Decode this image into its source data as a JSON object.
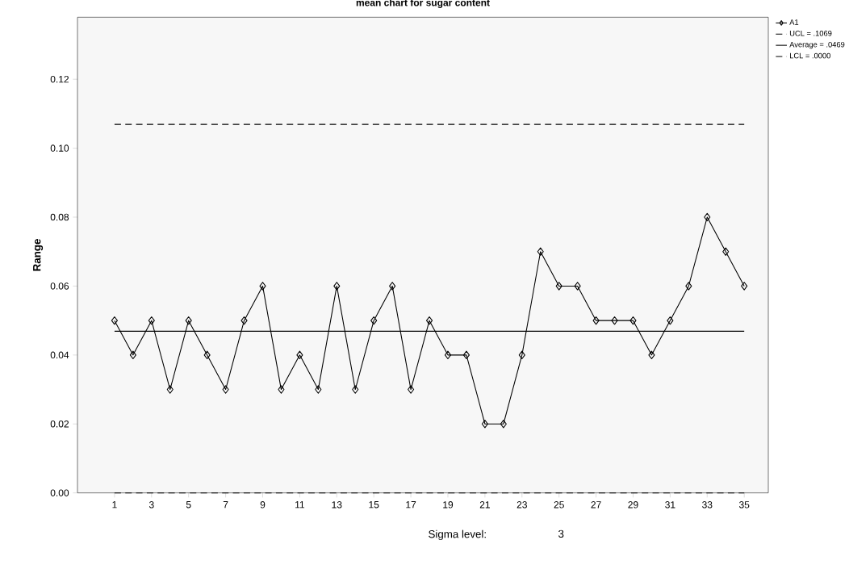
{
  "chart_data": {
    "type": "line",
    "title": "mean chart for sugar content",
    "xlabel": "Sigma level:",
    "ylabel": "Range",
    "categories": [
      "1",
      null,
      "3",
      null,
      "5",
      null,
      "7",
      null,
      "9",
      null,
      "11",
      null,
      "13",
      null,
      "15",
      null,
      "17",
      null,
      "19",
      null,
      "21",
      null,
      "23",
      null,
      "25",
      null,
      "27",
      null,
      "29",
      null,
      "31",
      null,
      "33",
      null,
      "35"
    ],
    "series": [
      {
        "name": "A1",
        "color": "#000000",
        "values": [
          0.05,
          0.04,
          0.05,
          0.03,
          0.05,
          0.04,
          0.03,
          0.05,
          0.06,
          0.03,
          0.04,
          0.03,
          0.06,
          0.03,
          0.05,
          0.06,
          0.03,
          0.05,
          0.04,
          0.04,
          0.02,
          0.02,
          0.04,
          0.07,
          0.06,
          0.06,
          0.05,
          0.05,
          0.05,
          0.04,
          0.05,
          0.06,
          0.08,
          0.07,
          0.06
        ]
      }
    ],
    "ref_lines": [
      {
        "axis": "y",
        "value": 0.1069,
        "label": "UCL = .1069",
        "line_style": "dashed",
        "color": "#000000"
      },
      {
        "axis": "y",
        "value": 0.0469,
        "label": "Average = .0469",
        "line_style": "solid",
        "color": "#000000"
      },
      {
        "axis": "y",
        "value": 0.0,
        "label": "LCL = .0000",
        "line_style": "dashed",
        "color": "#000000"
      }
    ],
    "ylim": [
      0,
      0.138
    ],
    "yticks": [
      {
        "value": 0,
        "label": "0.00"
      },
      {
        "value": 0.02,
        "label": "0.02"
      },
      {
        "value": 0.04,
        "label": "0.04"
      },
      {
        "value": 0.06,
        "label": "0.06"
      },
      {
        "value": 0.08,
        "label": "0.08"
      },
      {
        "value": 0.1,
        "label": "0.10"
      },
      {
        "value": 0.12,
        "label": "0.12"
      }
    ],
    "annotations": [
      "3"
    ],
    "marker": "diamond",
    "line_style": "solid",
    "grid": false,
    "legend": "right"
  }
}
